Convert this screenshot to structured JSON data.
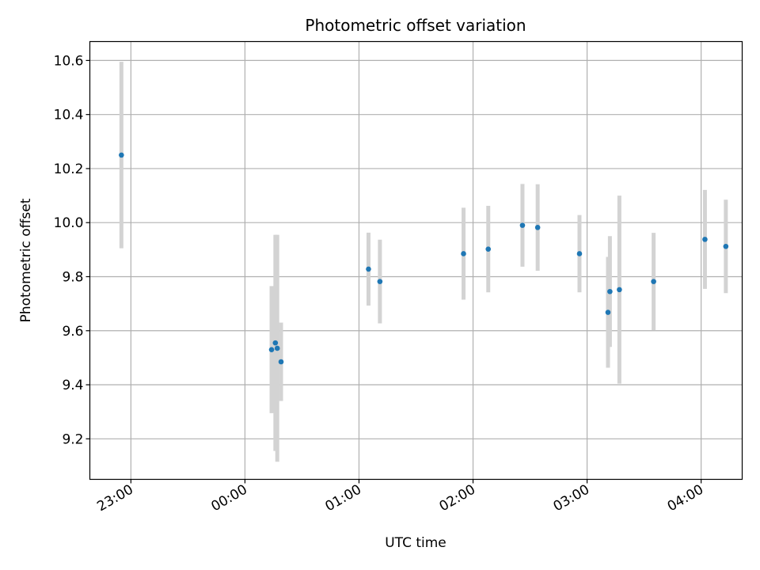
{
  "chart_data": {
    "type": "scatter",
    "title": "Photometric offset variation",
    "xlabel": "UTC time",
    "ylabel": "Photometric offset",
    "x_ticks": [
      "23:00",
      "00:00",
      "01:00",
      "02:00",
      "03:00",
      "04:00"
    ],
    "y_ticks": [
      "9.2",
      "9.4",
      "9.6",
      "9.8",
      "10.0",
      "10.2",
      "10.4",
      "10.6"
    ],
    "xlim_hours_rel_2300": [
      -0.36,
      5.36
    ],
    "ylim": [
      9.05,
      10.67
    ],
    "grid": true,
    "marker_color": "#1f77b4",
    "errorbar_color": "#d3d3d3",
    "points": [
      {
        "t": "22:55",
        "y": 10.25,
        "err": 0.345
      },
      {
        "t": "00:14",
        "y": 9.53,
        "err": 0.235
      },
      {
        "t": "00:16",
        "y": 9.555,
        "err": 0.4
      },
      {
        "t": "00:17",
        "y": 9.535,
        "err": 0.42
      },
      {
        "t": "00:19",
        "y": 9.485,
        "err": 0.145
      },
      {
        "t": "01:05",
        "y": 9.828,
        "err": 0.135
      },
      {
        "t": "01:11",
        "y": 9.782,
        "err": 0.155
      },
      {
        "t": "01:55",
        "y": 9.885,
        "err": 0.17
      },
      {
        "t": "02:08",
        "y": 9.902,
        "err": 0.16
      },
      {
        "t": "02:26",
        "y": 9.99,
        "err": 0.153
      },
      {
        "t": "02:34",
        "y": 9.982,
        "err": 0.16
      },
      {
        "t": "02:56",
        "y": 9.885,
        "err": 0.143
      },
      {
        "t": "03:11",
        "y": 9.668,
        "err": 0.205
      },
      {
        "t": "03:12",
        "y": 9.745,
        "err": 0.205
      },
      {
        "t": "03:17",
        "y": 9.752,
        "err": 0.348
      },
      {
        "t": "03:35",
        "y": 9.782,
        "err": 0.18
      },
      {
        "t": "04:02",
        "y": 9.938,
        "err": 0.183
      },
      {
        "t": "04:13",
        "y": 9.912,
        "err": 0.173
      }
    ]
  }
}
